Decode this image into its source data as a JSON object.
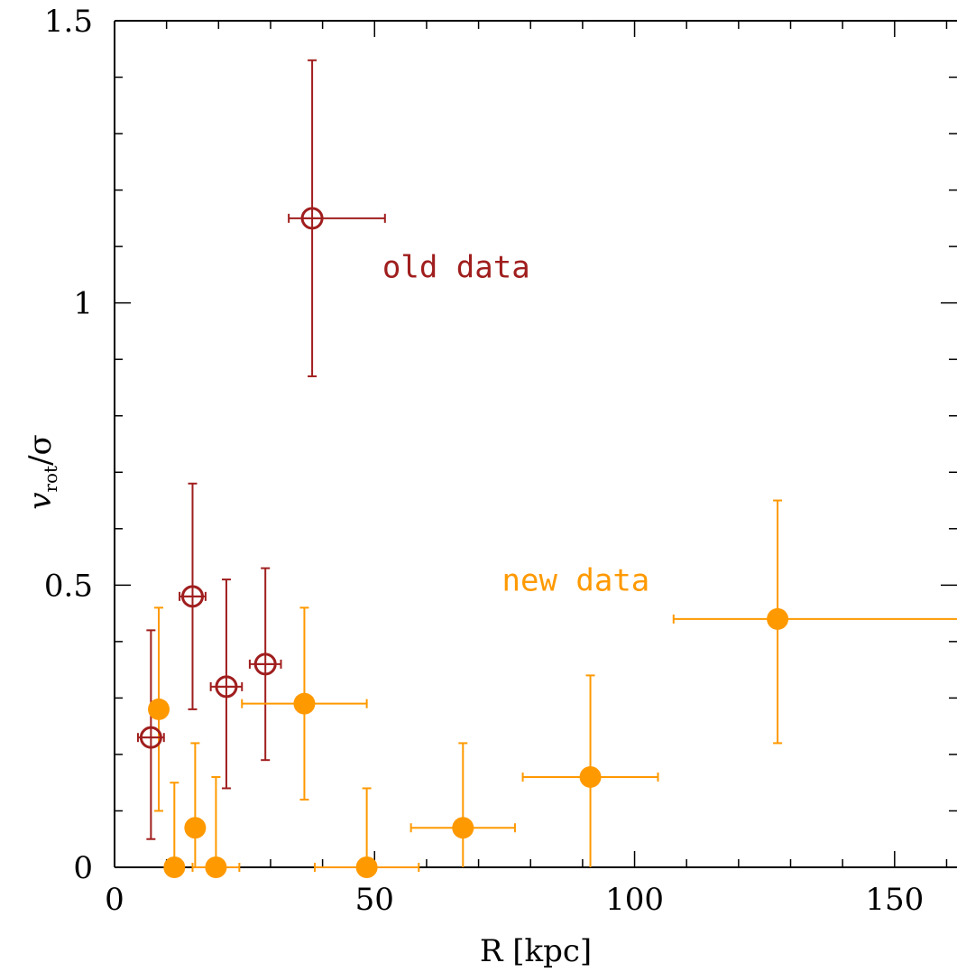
{
  "chart_data": {
    "type": "scatter",
    "title": "",
    "xlabel": "R [kpc]",
    "ylabel_main": "v",
    "ylabel_sub": "rot",
    "ylabel_tail": "/σ",
    "xlim": [
      0,
      162
    ],
    "ylim": [
      0,
      1.5
    ],
    "x_ticks": [
      "0",
      "50",
      "100",
      "150"
    ],
    "y_ticks": [
      "0",
      "0.5",
      "1",
      "1.5"
    ],
    "grid": false,
    "series": [
      {
        "name": "old data",
        "color": "#a01e1e",
        "marker": "open-circle",
        "points": [
          {
            "x": 7,
            "y": 0.23,
            "xerr": 2.5,
            "ylo": 0.05,
            "yhi": 0.42
          },
          {
            "x": 15,
            "y": 0.48,
            "xerr": 2.5,
            "ylo": 0.28,
            "yhi": 0.68
          },
          {
            "x": 21.5,
            "y": 0.32,
            "xerr": 3,
            "ylo": 0.14,
            "yhi": 0.51
          },
          {
            "x": 29,
            "y": 0.36,
            "xerr": 3,
            "ylo": 0.19,
            "yhi": 0.53
          },
          {
            "x": 38,
            "y": 1.15,
            "xerr_lo": 4.5,
            "xerr_hi": 14,
            "ylo": 0.87,
            "yhi": 1.43
          }
        ]
      },
      {
        "name": "new data",
        "color": "#ff9900",
        "marker": "filled-circle",
        "points": [
          {
            "x": 8.5,
            "y": 0.28,
            "ylo": 0.1,
            "yhi": 0.46
          },
          {
            "x": 11.5,
            "y": 0.0,
            "ylo": 0.0,
            "yhi": 0.15
          },
          {
            "x": 15.5,
            "y": 0.07,
            "ylo": 0.0,
            "yhi": 0.22
          },
          {
            "x": 19.5,
            "y": 0.0,
            "xerr": 4.5,
            "ylo": 0.0,
            "yhi": 0.16
          },
          {
            "x": 36.5,
            "y": 0.29,
            "xerr": 12,
            "ylo": 0.12,
            "yhi": 0.46
          },
          {
            "x": 48.5,
            "y": 0.0,
            "xerr": 10,
            "ylo": 0.0,
            "yhi": 0.14
          },
          {
            "x": 67,
            "y": 0.07,
            "xerr": 10,
            "ylo": 0.0,
            "yhi": 0.22
          },
          {
            "x": 91.5,
            "y": 0.16,
            "xerr": 13,
            "ylo": 0.0,
            "yhi": 0.34
          },
          {
            "x": 127.5,
            "y": 0.44,
            "xerr": 20,
            "xerr_hi": 40,
            "ylo": 0.22,
            "yhi": 0.65
          }
        ]
      }
    ],
    "annotations": [
      {
        "text": "old data",
        "x": 51.5,
        "y": 1.045,
        "series": 0
      },
      {
        "text": "new data",
        "x": 74.5,
        "y": 0.49,
        "series": 1
      }
    ]
  }
}
